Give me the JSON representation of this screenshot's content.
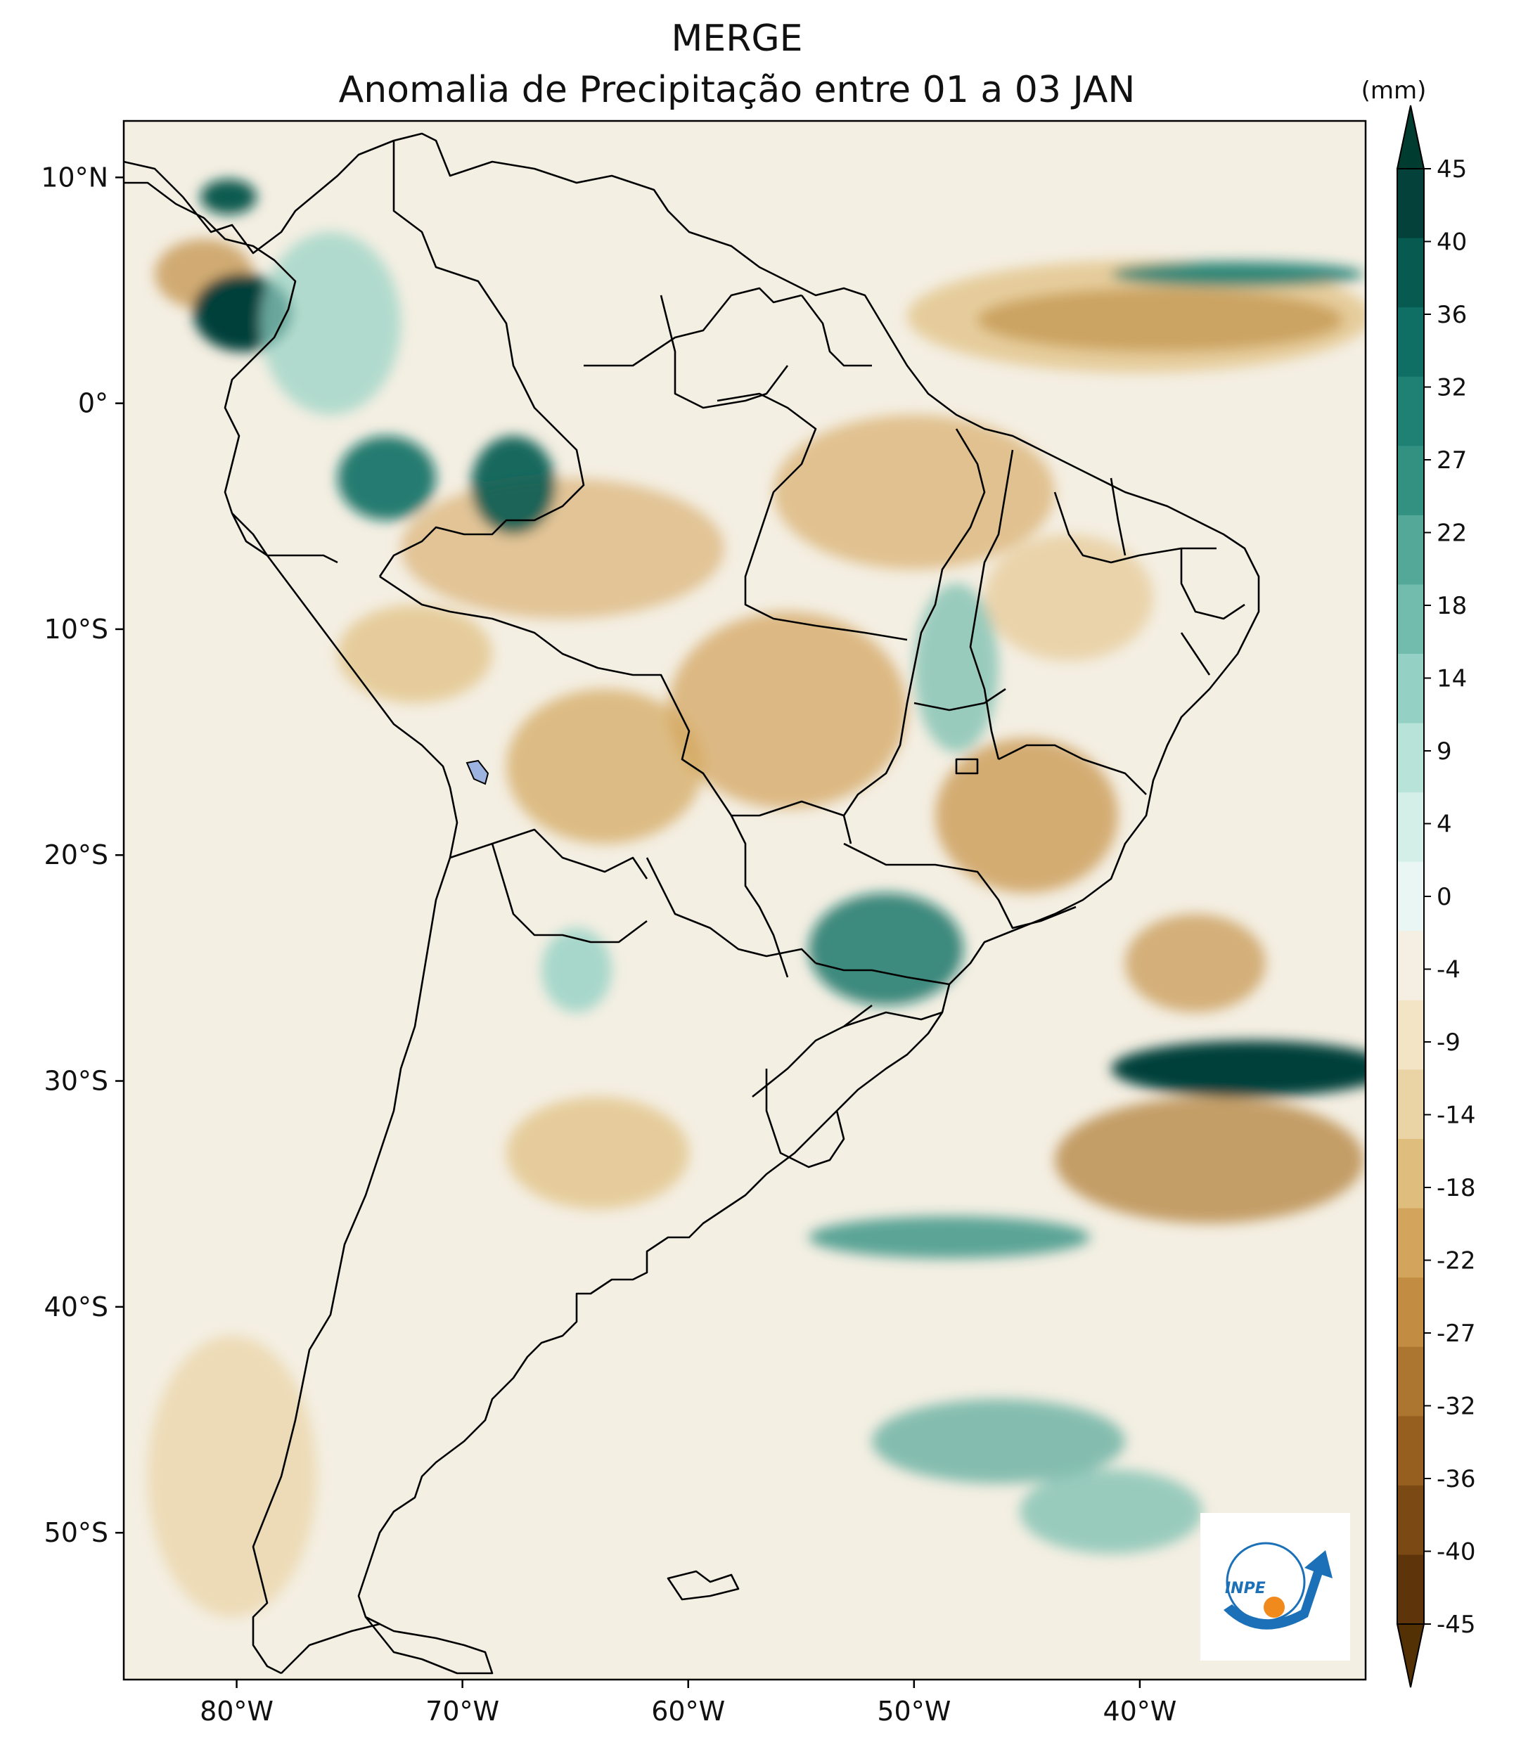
{
  "title": {
    "line1": "MERGE",
    "line2": "Anomalia de Precipitação entre 01 a 03 JAN"
  },
  "map": {
    "lon_ticks": [
      {
        "value": -80,
        "label": "80°W"
      },
      {
        "value": -70,
        "label": "70°W"
      },
      {
        "value": -60,
        "label": "60°W"
      },
      {
        "value": -50,
        "label": "50°W"
      },
      {
        "value": -40,
        "label": "40°W"
      }
    ],
    "lat_ticks": [
      {
        "value": 10,
        "label": "10°N"
      },
      {
        "value": 0,
        "label": "0°"
      },
      {
        "value": -10,
        "label": "10°S"
      },
      {
        "value": -20,
        "label": "20°S"
      },
      {
        "value": -30,
        "label": "30°S"
      },
      {
        "value": -40,
        "label": "40°S"
      },
      {
        "value": -50,
        "label": "50°S"
      }
    ],
    "lon_range": [
      -85,
      -30
    ],
    "lat_range": [
      -56.5,
      12.5
    ]
  },
  "colorbar": {
    "unit": "(mm)",
    "levels": [
      "45",
      "40",
      "36",
      "32",
      "27",
      "22",
      "18",
      "14",
      "9",
      "4",
      "0",
      "-4",
      "-9",
      "-14",
      "-18",
      "-22",
      "-27",
      "-32",
      "-36",
      "-40",
      "-45"
    ],
    "colors": [
      "#04413a",
      "#075a50",
      "#0f6f64",
      "#1f8074",
      "#339182",
      "#54a898",
      "#72bcad",
      "#94d1c4",
      "#b7e3d9",
      "#d4eee8",
      "#eaf6f3",
      "#f4efe2",
      "#f2e4c5",
      "#ead3a4",
      "#dfbd7d",
      "#d3a55c",
      "#c28d42",
      "#ad7630",
      "#965f1f",
      "#7b4a14",
      "#5e350b"
    ],
    "arrow_top_color": "#003c30",
    "arrow_bottom_color": "#543005"
  },
  "logo": {
    "text": "INPE",
    "colors": {
      "blue": "#1b70b8",
      "orange": "#f08a1c"
    }
  },
  "palette": {
    "land_base": "#f4efe3",
    "ocean_base": "#f4efe3"
  }
}
